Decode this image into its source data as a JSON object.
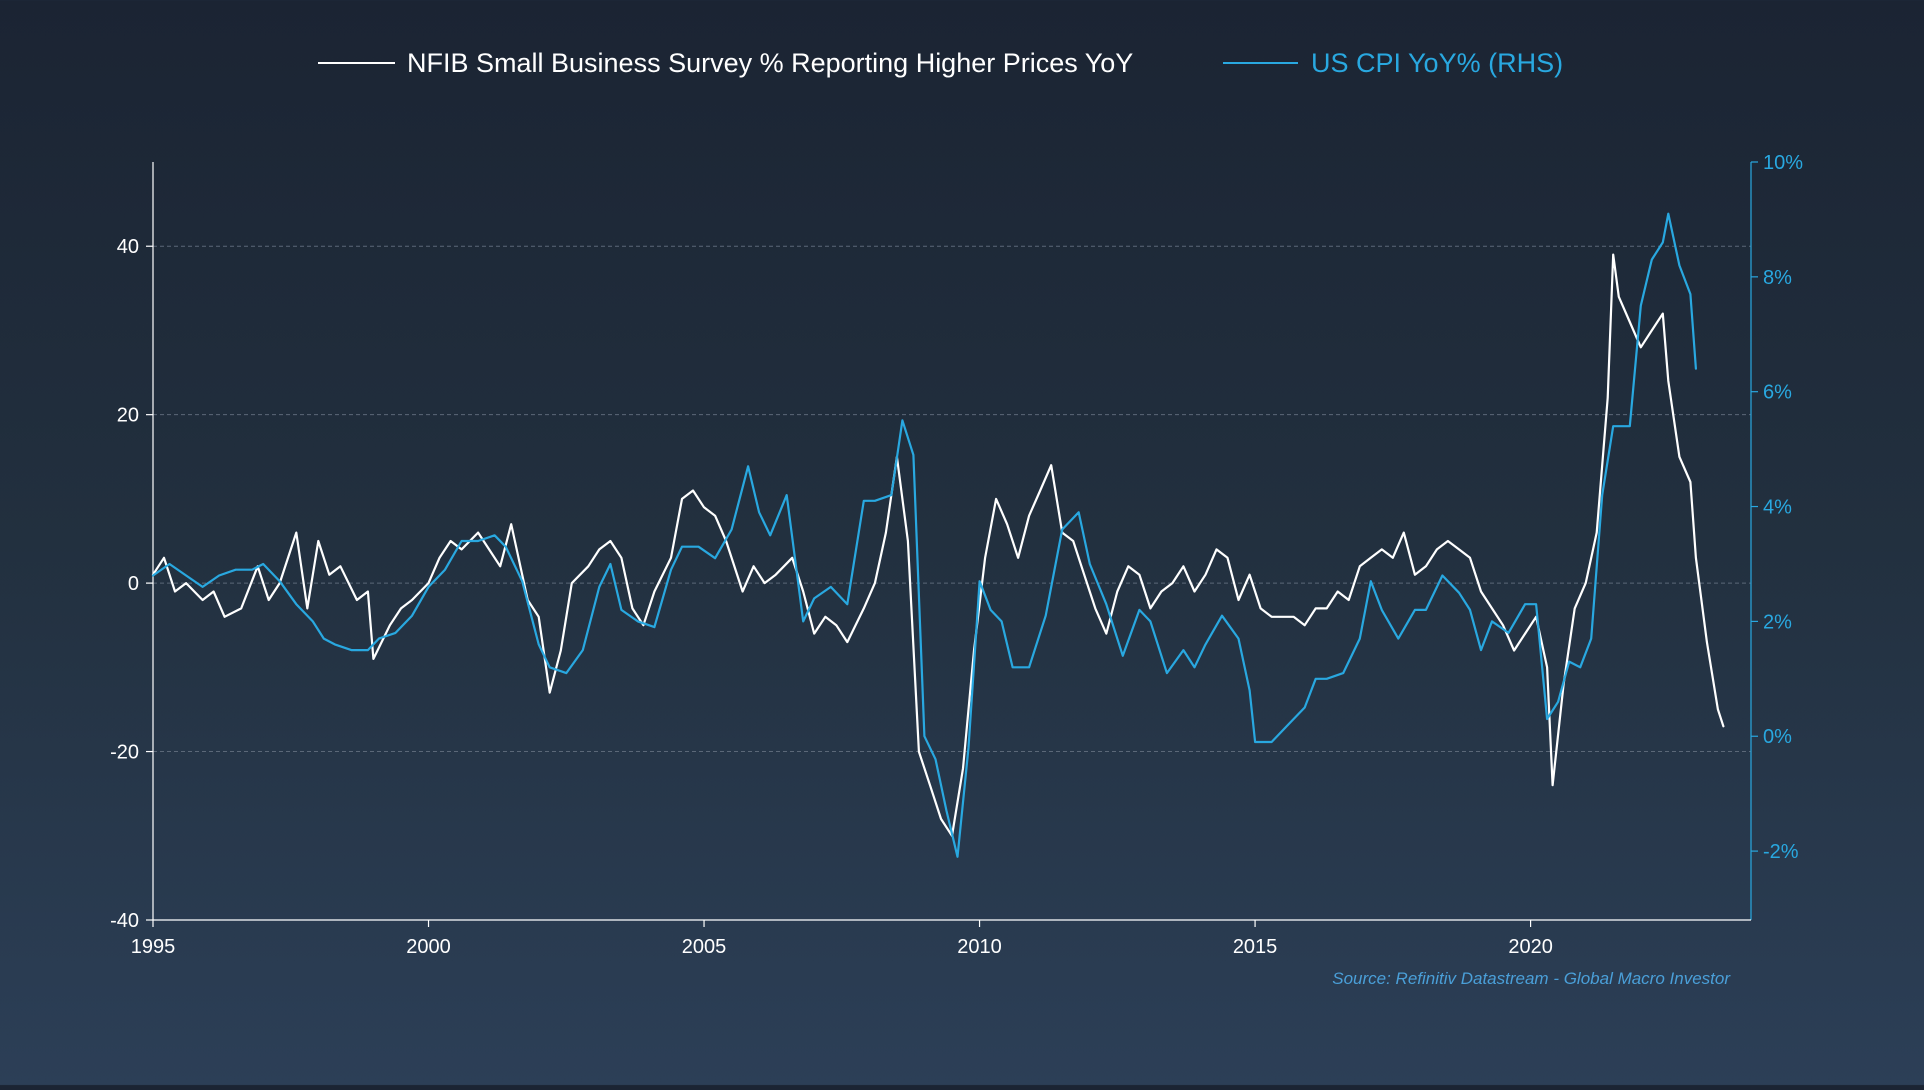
{
  "chart_data": {
    "type": "line",
    "legend": {
      "placement": "top-center",
      "entries": [
        {
          "label": "NFIB Small Business Survey % Reporting Higher Prices YoY",
          "color": "#ffffff"
        },
        {
          "label": "US CPI YoY% (RHS)",
          "color": "#29a8e0"
        }
      ]
    },
    "source": "Source: Refinitiv Datastream - Global Macro Investor",
    "x_axis": {
      "range": [
        1995,
        2024
      ],
      "ticks": [
        1995,
        2000,
        2005,
        2010,
        2015,
        2020
      ],
      "tick_labels": [
        "1995",
        "2000",
        "2005",
        "2010",
        "2015",
        "2020"
      ]
    },
    "y_left": {
      "range": [
        -40,
        50
      ],
      "ticks": [
        -40,
        -20,
        0,
        20,
        40
      ],
      "tick_labels": [
        "-40",
        "-20",
        "0",
        "20",
        "40"
      ],
      "gridlines": [
        -20,
        0,
        20,
        40
      ]
    },
    "y_right": {
      "range": [
        -3.2,
        10
      ],
      "ticks": [
        -2,
        0,
        2,
        4,
        6,
        8,
        10
      ],
      "tick_labels": [
        "-2%",
        "0%",
        "2%",
        "4%",
        "6%",
        "8%",
        "10%"
      ],
      "color": "#29a8e0"
    },
    "series": [
      {
        "name": "NFIB Small Business Survey % Reporting Higher Prices YoY",
        "axis": "left",
        "color": "#ffffff",
        "points": [
          [
            1995.0,
            1
          ],
          [
            1995.2,
            3
          ],
          [
            1995.4,
            -1
          ],
          [
            1995.6,
            0
          ],
          [
            1995.9,
            -2
          ],
          [
            1996.1,
            -1
          ],
          [
            1996.3,
            -4
          ],
          [
            1996.6,
            -3
          ],
          [
            1996.9,
            2
          ],
          [
            1997.1,
            -2
          ],
          [
            1997.3,
            0
          ],
          [
            1997.6,
            6
          ],
          [
            1997.8,
            -3
          ],
          [
            1998.0,
            5
          ],
          [
            1998.2,
            1
          ],
          [
            1998.4,
            2
          ],
          [
            1998.7,
            -2
          ],
          [
            1998.9,
            -1
          ],
          [
            1999.0,
            -9
          ],
          [
            1999.3,
            -5
          ],
          [
            1999.5,
            -3
          ],
          [
            1999.7,
            -2
          ],
          [
            2000.0,
            0
          ],
          [
            2000.2,
            3
          ],
          [
            2000.4,
            5
          ],
          [
            2000.6,
            4
          ],
          [
            2000.9,
            6
          ],
          [
            2001.1,
            4
          ],
          [
            2001.3,
            2
          ],
          [
            2001.5,
            7
          ],
          [
            2001.8,
            -2
          ],
          [
            2002.0,
            -4
          ],
          [
            2002.2,
            -13
          ],
          [
            2002.4,
            -8
          ],
          [
            2002.6,
            0
          ],
          [
            2002.9,
            2
          ],
          [
            2003.1,
            4
          ],
          [
            2003.3,
            5
          ],
          [
            2003.5,
            3
          ],
          [
            2003.7,
            -3
          ],
          [
            2003.9,
            -5
          ],
          [
            2004.1,
            -1
          ],
          [
            2004.4,
            3
          ],
          [
            2004.6,
            10
          ],
          [
            2004.8,
            11
          ],
          [
            2005.0,
            9
          ],
          [
            2005.2,
            8
          ],
          [
            2005.4,
            5
          ],
          [
            2005.7,
            -1
          ],
          [
            2005.9,
            2
          ],
          [
            2006.1,
            0
          ],
          [
            2006.3,
            1
          ],
          [
            2006.6,
            3
          ],
          [
            2006.8,
            -1
          ],
          [
            2007.0,
            -6
          ],
          [
            2007.2,
            -4
          ],
          [
            2007.4,
            -5
          ],
          [
            2007.6,
            -7
          ],
          [
            2007.9,
            -3
          ],
          [
            2008.1,
            0
          ],
          [
            2008.3,
            6
          ],
          [
            2008.5,
            15
          ],
          [
            2008.7,
            5
          ],
          [
            2008.9,
            -20
          ],
          [
            2009.1,
            -24
          ],
          [
            2009.3,
            -28
          ],
          [
            2009.5,
            -30
          ],
          [
            2009.7,
            -22
          ],
          [
            2009.9,
            -8
          ],
          [
            2010.1,
            3
          ],
          [
            2010.3,
            10
          ],
          [
            2010.5,
            7
          ],
          [
            2010.7,
            3
          ],
          [
            2010.9,
            8
          ],
          [
            2011.1,
            11
          ],
          [
            2011.3,
            14
          ],
          [
            2011.5,
            6
          ],
          [
            2011.7,
            5
          ],
          [
            2011.9,
            1
          ],
          [
            2012.1,
            -3
          ],
          [
            2012.3,
            -6
          ],
          [
            2012.5,
            -1
          ],
          [
            2012.7,
            2
          ],
          [
            2012.9,
            1
          ],
          [
            2013.1,
            -3
          ],
          [
            2013.3,
            -1
          ],
          [
            2013.5,
            0
          ],
          [
            2013.7,
            2
          ],
          [
            2013.9,
            -1
          ],
          [
            2014.1,
            1
          ],
          [
            2014.3,
            4
          ],
          [
            2014.5,
            3
          ],
          [
            2014.7,
            -2
          ],
          [
            2014.9,
            1
          ],
          [
            2015.1,
            -3
          ],
          [
            2015.3,
            -4
          ],
          [
            2015.5,
            -4
          ],
          [
            2015.7,
            -4
          ],
          [
            2015.9,
            -5
          ],
          [
            2016.1,
            -3
          ],
          [
            2016.3,
            -3
          ],
          [
            2016.5,
            -1
          ],
          [
            2016.7,
            -2
          ],
          [
            2016.9,
            2
          ],
          [
            2017.1,
            3
          ],
          [
            2017.3,
            4
          ],
          [
            2017.5,
            3
          ],
          [
            2017.7,
            6
          ],
          [
            2017.9,
            1
          ],
          [
            2018.1,
            2
          ],
          [
            2018.3,
            4
          ],
          [
            2018.5,
            5
          ],
          [
            2018.7,
            4
          ],
          [
            2018.9,
            3
          ],
          [
            2019.1,
            -1
          ],
          [
            2019.3,
            -3
          ],
          [
            2019.5,
            -5
          ],
          [
            2019.7,
            -8
          ],
          [
            2019.9,
            -6
          ],
          [
            2020.1,
            -4
          ],
          [
            2020.3,
            -10
          ],
          [
            2020.4,
            -24
          ],
          [
            2020.6,
            -12
          ],
          [
            2020.8,
            -3
          ],
          [
            2021.0,
            0
          ],
          [
            2021.2,
            6
          ],
          [
            2021.4,
            22
          ],
          [
            2021.5,
            39
          ],
          [
            2021.6,
            34
          ],
          [
            2021.8,
            31
          ],
          [
            2022.0,
            28
          ],
          [
            2022.2,
            30
          ],
          [
            2022.4,
            32
          ],
          [
            2022.5,
            24
          ],
          [
            2022.7,
            15
          ],
          [
            2022.9,
            12
          ],
          [
            2023.0,
            3
          ],
          [
            2023.2,
            -7
          ],
          [
            2023.4,
            -15
          ],
          [
            2023.5,
            -17
          ]
        ]
      },
      {
        "name": "US CPI YoY% (RHS)",
        "axis": "right",
        "color": "#29a8e0",
        "points": [
          [
            1995.0,
            2.8
          ],
          [
            1995.3,
            3.0
          ],
          [
            1995.6,
            2.8
          ],
          [
            1995.9,
            2.6
          ],
          [
            1996.2,
            2.8
          ],
          [
            1996.5,
            2.9
          ],
          [
            1996.8,
            2.9
          ],
          [
            1997.0,
            3.0
          ],
          [
            1997.3,
            2.7
          ],
          [
            1997.6,
            2.3
          ],
          [
            1997.9,
            2.0
          ],
          [
            1998.1,
            1.7
          ],
          [
            1998.3,
            1.6
          ],
          [
            1998.6,
            1.5
          ],
          [
            1998.9,
            1.5
          ],
          [
            1999.1,
            1.7
          ],
          [
            1999.4,
            1.8
          ],
          [
            1999.7,
            2.1
          ],
          [
            2000.0,
            2.6
          ],
          [
            2000.3,
            2.9
          ],
          [
            2000.6,
            3.4
          ],
          [
            2000.9,
            3.4
          ],
          [
            2001.2,
            3.5
          ],
          [
            2001.4,
            3.3
          ],
          [
            2001.7,
            2.7
          ],
          [
            2002.0,
            1.6
          ],
          [
            2002.2,
            1.2
          ],
          [
            2002.5,
            1.1
          ],
          [
            2002.8,
            1.5
          ],
          [
            2003.1,
            2.6
          ],
          [
            2003.3,
            3.0
          ],
          [
            2003.5,
            2.2
          ],
          [
            2003.8,
            2.0
          ],
          [
            2004.1,
            1.9
          ],
          [
            2004.4,
            2.9
          ],
          [
            2004.6,
            3.3
          ],
          [
            2004.9,
            3.3
          ],
          [
            2005.2,
            3.1
          ],
          [
            2005.5,
            3.6
          ],
          [
            2005.8,
            4.7
          ],
          [
            2006.0,
            3.9
          ],
          [
            2006.2,
            3.5
          ],
          [
            2006.5,
            4.2
          ],
          [
            2006.8,
            2.0
          ],
          [
            2007.0,
            2.4
          ],
          [
            2007.3,
            2.6
          ],
          [
            2007.6,
            2.3
          ],
          [
            2007.9,
            4.1
          ],
          [
            2008.1,
            4.1
          ],
          [
            2008.4,
            4.2
          ],
          [
            2008.6,
            5.5
          ],
          [
            2008.8,
            4.9
          ],
          [
            2009.0,
            0.0
          ],
          [
            2009.2,
            -0.4
          ],
          [
            2009.4,
            -1.3
          ],
          [
            2009.6,
            -2.1
          ],
          [
            2009.8,
            -0.2
          ],
          [
            2010.0,
            2.7
          ],
          [
            2010.2,
            2.2
          ],
          [
            2010.4,
            2.0
          ],
          [
            2010.6,
            1.2
          ],
          [
            2010.9,
            1.2
          ],
          [
            2011.2,
            2.1
          ],
          [
            2011.5,
            3.6
          ],
          [
            2011.8,
            3.9
          ],
          [
            2012.0,
            3.0
          ],
          [
            2012.3,
            2.3
          ],
          [
            2012.6,
            1.4
          ],
          [
            2012.9,
            2.2
          ],
          [
            2013.1,
            2.0
          ],
          [
            2013.4,
            1.1
          ],
          [
            2013.7,
            1.5
          ],
          [
            2013.9,
            1.2
          ],
          [
            2014.1,
            1.6
          ],
          [
            2014.4,
            2.1
          ],
          [
            2014.7,
            1.7
          ],
          [
            2014.9,
            0.8
          ],
          [
            2015.0,
            -0.1
          ],
          [
            2015.3,
            -0.1
          ],
          [
            2015.6,
            0.2
          ],
          [
            2015.9,
            0.5
          ],
          [
            2016.1,
            1.0
          ],
          [
            2016.3,
            1.0
          ],
          [
            2016.6,
            1.1
          ],
          [
            2016.9,
            1.7
          ],
          [
            2017.1,
            2.7
          ],
          [
            2017.3,
            2.2
          ],
          [
            2017.6,
            1.7
          ],
          [
            2017.9,
            2.2
          ],
          [
            2018.1,
            2.2
          ],
          [
            2018.4,
            2.8
          ],
          [
            2018.7,
            2.5
          ],
          [
            2018.9,
            2.2
          ],
          [
            2019.1,
            1.5
          ],
          [
            2019.3,
            2.0
          ],
          [
            2019.6,
            1.8
          ],
          [
            2019.9,
            2.3
          ],
          [
            2020.1,
            2.3
          ],
          [
            2020.3,
            0.3
          ],
          [
            2020.5,
            0.6
          ],
          [
            2020.7,
            1.3
          ],
          [
            2020.9,
            1.2
          ],
          [
            2021.1,
            1.7
          ],
          [
            2021.3,
            4.2
          ],
          [
            2021.5,
            5.4
          ],
          [
            2021.8,
            5.4
          ],
          [
            2022.0,
            7.5
          ],
          [
            2022.2,
            8.3
          ],
          [
            2022.4,
            8.6
          ],
          [
            2022.5,
            9.1
          ],
          [
            2022.7,
            8.2
          ],
          [
            2022.9,
            7.7
          ],
          [
            2023.0,
            6.4
          ]
        ]
      }
    ]
  }
}
